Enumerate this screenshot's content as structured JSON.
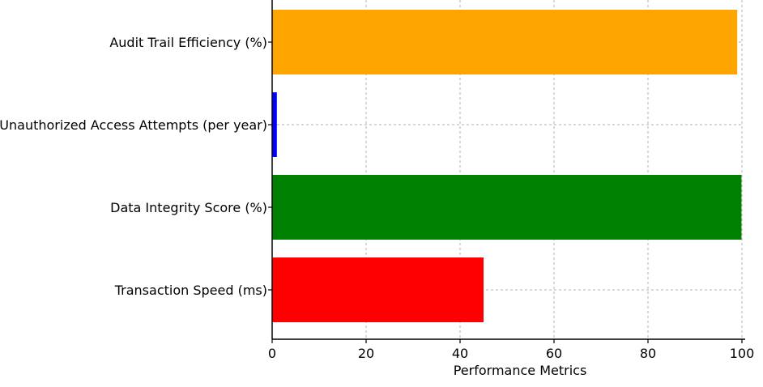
{
  "chart_data": {
    "type": "bar",
    "orientation": "horizontal",
    "categories": [
      "Transaction Speed (ms)",
      "Data Integrity Score (%)",
      "Unauthorized Access Attempts (per year)",
      "Audit Trail Efficiency (%)"
    ],
    "values": [
      45,
      99.9,
      1,
      99
    ],
    "colors": [
      "#ff0000",
      "#008000",
      "#0000ff",
      "#ffa500"
    ],
    "title": "",
    "xlabel": "Performance Metrics",
    "ylabel": "",
    "xlim": [
      0,
      100
    ],
    "x_ticks": [
      "0",
      "20",
      "40",
      "60",
      "80",
      "100"
    ],
    "x_tick_values": [
      0,
      20,
      40,
      60,
      80,
      100
    ],
    "grid": true
  }
}
